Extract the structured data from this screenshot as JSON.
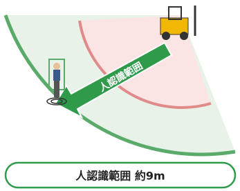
{
  "arrow_label": "人認識範囲",
  "caption": "人認識範囲 約9m"
}
